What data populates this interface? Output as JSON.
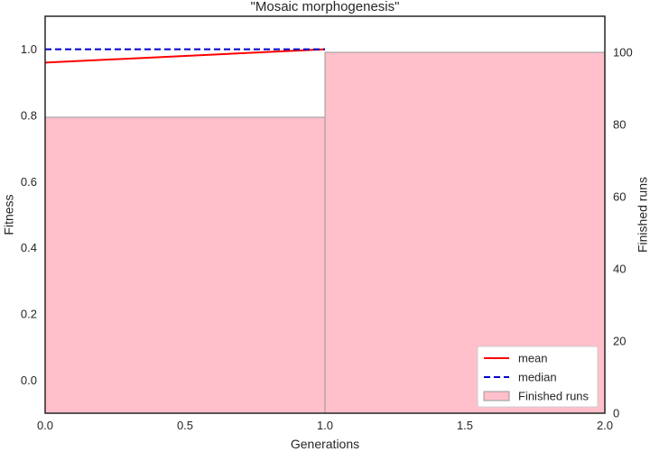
{
  "chart_data": {
    "type": "bar+line",
    "title": "\"Mosaic morphogenesis\"",
    "xlabel": "Generations",
    "ylabel": "Fitness",
    "y2label": "Finished runs",
    "xlim": [
      0,
      2
    ],
    "ylim": [
      -0.1,
      1.1
    ],
    "y2lim": [
      0,
      110
    ],
    "xticks": [
      "0.0",
      "0.5",
      "1.0",
      "1.5",
      "2.0"
    ],
    "yticks": [
      "0.0",
      "0.2",
      "0.4",
      "0.6",
      "0.8",
      "1.0"
    ],
    "y2ticks": [
      "0",
      "20",
      "40",
      "60",
      "80",
      "100"
    ],
    "grid": false,
    "legend_position": "lower-right",
    "bars": {
      "name": "Finished runs",
      "color": "#ffc0cb",
      "edge_color": "#999999",
      "axis": "right",
      "x_start": [
        0,
        1
      ],
      "x_end": [
        1,
        2
      ],
      "values": [
        82,
        100
      ]
    },
    "series": [
      {
        "name": "mean",
        "color": "#ff0000",
        "style": "solid",
        "x": [
          0,
          1
        ],
        "y": [
          0.96,
          1.0
        ]
      },
      {
        "name": "median",
        "color": "#0000cc",
        "style": "dashed",
        "x": [
          0,
          1
        ],
        "y": [
          1.0,
          1.0
        ]
      }
    ]
  }
}
